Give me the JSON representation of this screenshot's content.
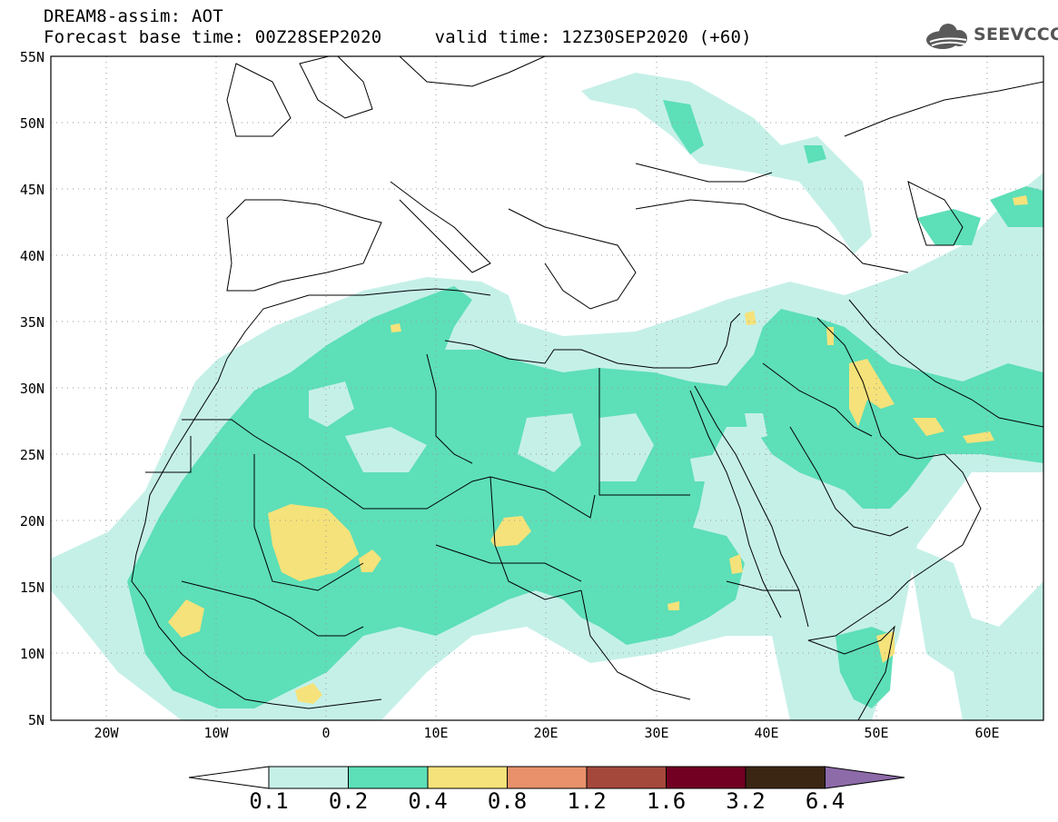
{
  "title": {
    "line1": "DREAM8-assim: AOT",
    "line2": "Forecast base time: 00Z28SEP2020     valid time: 12Z30SEP2020 (+60)"
  },
  "logo": {
    "text": "SEEVCCC",
    "icon": "cloud-icon"
  },
  "map": {
    "lon_range": [
      -25,
      65
    ],
    "lat_range": [
      5,
      55
    ],
    "lat_ticks": [
      "5N",
      "10N",
      "15N",
      "20N",
      "25N",
      "30N",
      "35N",
      "40N",
      "45N",
      "50N",
      "55N"
    ],
    "lon_ticks": [
      "20W",
      "10W",
      "0",
      "10E",
      "20E",
      "30E",
      "40E",
      "50E",
      "60E"
    ],
    "grid": "dotted"
  },
  "colorbar": {
    "levels": [
      "0.1",
      "0.2",
      "0.4",
      "0.8",
      "1.2",
      "1.6",
      "3.2",
      "6.4"
    ],
    "colors": {
      "below": "#ffffff",
      "c1": "#c5f0e8",
      "c2": "#5ddfb8",
      "c3": "#f5e27a",
      "c4": "#e8916a",
      "c5": "#a5483c",
      "c6": "#720022",
      "c7": "#3b2614",
      "above": "#8d6aa8"
    }
  },
  "colors": {
    "frame": "#000000",
    "border": "#000000",
    "grid": "#9a9a9a"
  }
}
